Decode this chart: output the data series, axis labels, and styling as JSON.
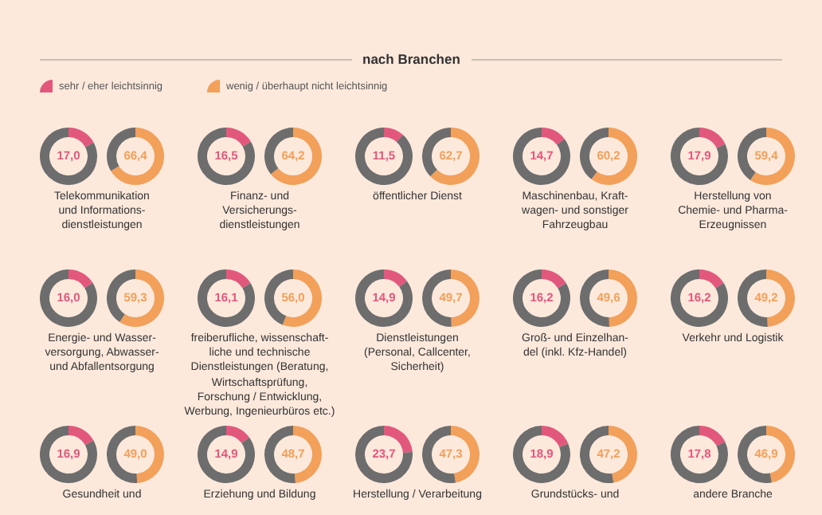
{
  "chart_data": [
    {
      "type": "other",
      "title": "nach Branchen",
      "legend": "top left",
      "series": [
        {
          "name": "sehr / eher leichtsinnig",
          "color": "#e2587c"
        },
        {
          "name": "wenig / überhaupt nicht leichtsinnig",
          "color": "#f2a05a"
        }
      ]
    },
    {
      "type": "donut",
      "categories": [
        null,
        null
      ],
      "values": [
        17.0,
        83.0
      ],
      "colors": [
        "#e2587c",
        "#6d6d6d"
      ],
      "value_labels": [
        "17,0",
        null
      ],
      "xlabel": "Telekommunikation\nund Informations-\ndienstleistungen"
    },
    {
      "type": "donut",
      "categories": [
        null,
        null
      ],
      "values": [
        66.4,
        33.6
      ],
      "colors": [
        "#f2a05a",
        "#6d6d6d"
      ],
      "value_labels": [
        "66,4",
        null
      ]
    },
    {
      "type": "donut",
      "categories": [
        null,
        null
      ],
      "values": [
        16.5,
        83.5
      ],
      "colors": [
        "#e2587c",
        "#6d6d6d"
      ],
      "value_labels": [
        "16,5",
        null
      ],
      "xlabel": "Finanz- und\nVersicherungs-\ndienstleistungen"
    },
    {
      "type": "donut",
      "categories": [
        null,
        null
      ],
      "values": [
        64.2,
        35.8
      ],
      "colors": [
        "#f2a05a",
        "#6d6d6d"
      ],
      "value_labels": [
        "64,2",
        null
      ]
    },
    {
      "type": "donut",
      "categories": [
        null,
        null
      ],
      "values": [
        11.5,
        88.5
      ],
      "colors": [
        "#e2587c",
        "#6d6d6d"
      ],
      "value_labels": [
        "11,5",
        null
      ],
      "xlabel": "öffentlicher Dienst"
    },
    {
      "type": "donut",
      "categories": [
        null,
        null
      ],
      "values": [
        62.7,
        37.3
      ],
      "colors": [
        "#f2a05a",
        "#6d6d6d"
      ],
      "value_labels": [
        "62,7",
        null
      ]
    },
    {
      "type": "donut",
      "categories": [
        null,
        null
      ],
      "values": [
        14.7,
        85.3
      ],
      "colors": [
        "#e2587c",
        "#6d6d6d"
      ],
      "value_labels": [
        "14,7",
        null
      ],
      "xlabel": "Maschinenbau, Kraft-\nwagen- und sonstiger\nFahrzeugbau"
    },
    {
      "type": "donut",
      "categories": [
        null,
        null
      ],
      "values": [
        60.2,
        39.8
      ],
      "colors": [
        "#f2a05a",
        "#6d6d6d"
      ],
      "value_labels": [
        "60,2",
        null
      ]
    },
    {
      "type": "donut",
      "categories": [
        null,
        null
      ],
      "values": [
        17.9,
        82.1
      ],
      "colors": [
        "#e2587c",
        "#6d6d6d"
      ],
      "value_labels": [
        "17,9",
        null
      ],
      "xlabel": "Herstellung von\nChemie- und Pharma-\nErzeugnissen"
    },
    {
      "type": "donut",
      "categories": [
        null,
        null
      ],
      "values": [
        59.4,
        40.6
      ],
      "colors": [
        "#f2a05a",
        "#6d6d6d"
      ],
      "value_labels": [
        "59,4",
        null
      ]
    },
    {
      "type": "donut",
      "categories": [
        null,
        null
      ],
      "values": [
        16.0,
        84.0
      ],
      "colors": [
        "#e2587c",
        "#6d6d6d"
      ],
      "value_labels": [
        "16,0",
        null
      ],
      "xlabel": "Energie- und Wasser-\nversorgung, Abwasser-\nund Abfallentsorgung"
    },
    {
      "type": "donut",
      "categories": [
        null,
        null
      ],
      "values": [
        59.3,
        40.7
      ],
      "colors": [
        "#f2a05a",
        "#6d6d6d"
      ],
      "value_labels": [
        "59,3",
        null
      ]
    },
    {
      "type": "donut",
      "categories": [
        null,
        null
      ],
      "values": [
        16.1,
        83.9
      ],
      "colors": [
        "#e2587c",
        "#6d6d6d"
      ],
      "value_labels": [
        "16,1",
        null
      ],
      "xlabel": "freiberufliche, wissenschaft-\nliche und technische\nDienstleistungen (Beratung,\nWirtschaftsprüfung,\nForschung / Entwicklung,\nWerbung, Ingenieurbüros etc.)"
    },
    {
      "type": "donut",
      "categories": [
        null,
        null
      ],
      "values": [
        56.0,
        44.0
      ],
      "colors": [
        "#f2a05a",
        "#6d6d6d"
      ],
      "value_labels": [
        "56,0",
        null
      ]
    },
    {
      "type": "donut",
      "categories": [
        null,
        null
      ],
      "values": [
        14.9,
        85.1
      ],
      "colors": [
        "#e2587c",
        "#6d6d6d"
      ],
      "value_labels": [
        "14,9",
        null
      ],
      "xlabel": "Dienstleistungen\n(Personal, Callcenter,\nSicherheit)"
    },
    {
      "type": "donut",
      "categories": [
        null,
        null
      ],
      "values": [
        49.7,
        50.3
      ],
      "colors": [
        "#f2a05a",
        "#6d6d6d"
      ],
      "value_labels": [
        "49,7",
        null
      ]
    },
    {
      "type": "donut",
      "categories": [
        null,
        null
      ],
      "values": [
        16.2,
        83.8
      ],
      "colors": [
        "#e2587c",
        "#6d6d6d"
      ],
      "value_labels": [
        "16,2",
        null
      ],
      "xlabel": "Groß- und Einzelhan-\ndel (inkl. Kfz-Handel)"
    },
    {
      "type": "donut",
      "categories": [
        null,
        null
      ],
      "values": [
        49.6,
        50.4
      ],
      "colors": [
        "#f2a05a",
        "#6d6d6d"
      ],
      "value_labels": [
        "49,6",
        null
      ]
    },
    {
      "type": "donut",
      "categories": [
        null,
        null
      ],
      "values": [
        16.2,
        83.8
      ],
      "colors": [
        "#e2587c",
        "#6d6d6d"
      ],
      "value_labels": [
        "16,2",
        null
      ],
      "xlabel": "Verkehr und Logistik"
    },
    {
      "type": "donut",
      "categories": [
        null,
        null
      ],
      "values": [
        49.2,
        50.8
      ],
      "colors": [
        "#f2a05a",
        "#6d6d6d"
      ],
      "value_labels": [
        "49,2",
        null
      ]
    },
    {
      "type": "donut",
      "categories": [
        null,
        null
      ],
      "values": [
        16.9,
        83.1
      ],
      "colors": [
        "#e2587c",
        "#6d6d6d"
      ],
      "value_labels": [
        "16,9",
        null
      ],
      "xlabel": "Gesundheit und"
    },
    {
      "type": "donut",
      "categories": [
        null,
        null
      ],
      "values": [
        49.0,
        51.0
      ],
      "colors": [
        "#f2a05a",
        "#6d6d6d"
      ],
      "value_labels": [
        "49,0",
        null
      ]
    },
    {
      "type": "donut",
      "categories": [
        null,
        null
      ],
      "values": [
        14.9,
        85.1
      ],
      "colors": [
        "#e2587c",
        "#6d6d6d"
      ],
      "value_labels": [
        "14,9",
        null
      ],
      "xlabel": "Erziehung und Bildung"
    },
    {
      "type": "donut",
      "categories": [
        null,
        null
      ],
      "values": [
        48.7,
        51.3
      ],
      "colors": [
        "#f2a05a",
        "#6d6d6d"
      ],
      "value_labels": [
        "48,7",
        null
      ]
    },
    {
      "type": "donut",
      "categories": [
        null,
        null
      ],
      "values": [
        23.7,
        76.3
      ],
      "colors": [
        "#e2587c",
        "#6d6d6d"
      ],
      "value_labels": [
        "23,7",
        null
      ],
      "xlabel": "Herstellung / Verarbeitung"
    },
    {
      "type": "donut",
      "categories": [
        null,
        null
      ],
      "values": [
        47.3,
        52.7
      ],
      "colors": [
        "#f2a05a",
        "#6d6d6d"
      ],
      "value_labels": [
        "47,3",
        null
      ]
    },
    {
      "type": "donut",
      "categories": [
        null,
        null
      ],
      "values": [
        18.9,
        81.1
      ],
      "colors": [
        "#e2587c",
        "#6d6d6d"
      ],
      "value_labels": [
        "18,9",
        null
      ],
      "xlabel": "Grundstücks- und"
    },
    {
      "type": "donut",
      "categories": [
        null,
        null
      ],
      "values": [
        47.2,
        52.8
      ],
      "colors": [
        "#f2a05a",
        "#6d6d6d"
      ],
      "value_labels": [
        "47,2",
        null
      ]
    },
    {
      "type": "donut",
      "categories": [
        null,
        null
      ],
      "values": [
        17.8,
        82.2
      ],
      "colors": [
        "#e2587c",
        "#6d6d6d"
      ],
      "value_labels": [
        "17,8",
        null
      ],
      "xlabel": "andere Branche"
    },
    {
      "type": "donut",
      "categories": [
        null,
        null
      ],
      "values": [
        46.9,
        53.1
      ],
      "colors": [
        "#f2a05a",
        "#6d6d6d"
      ],
      "value_labels": [
        "46,9",
        null
      ]
    }
  ]
}
